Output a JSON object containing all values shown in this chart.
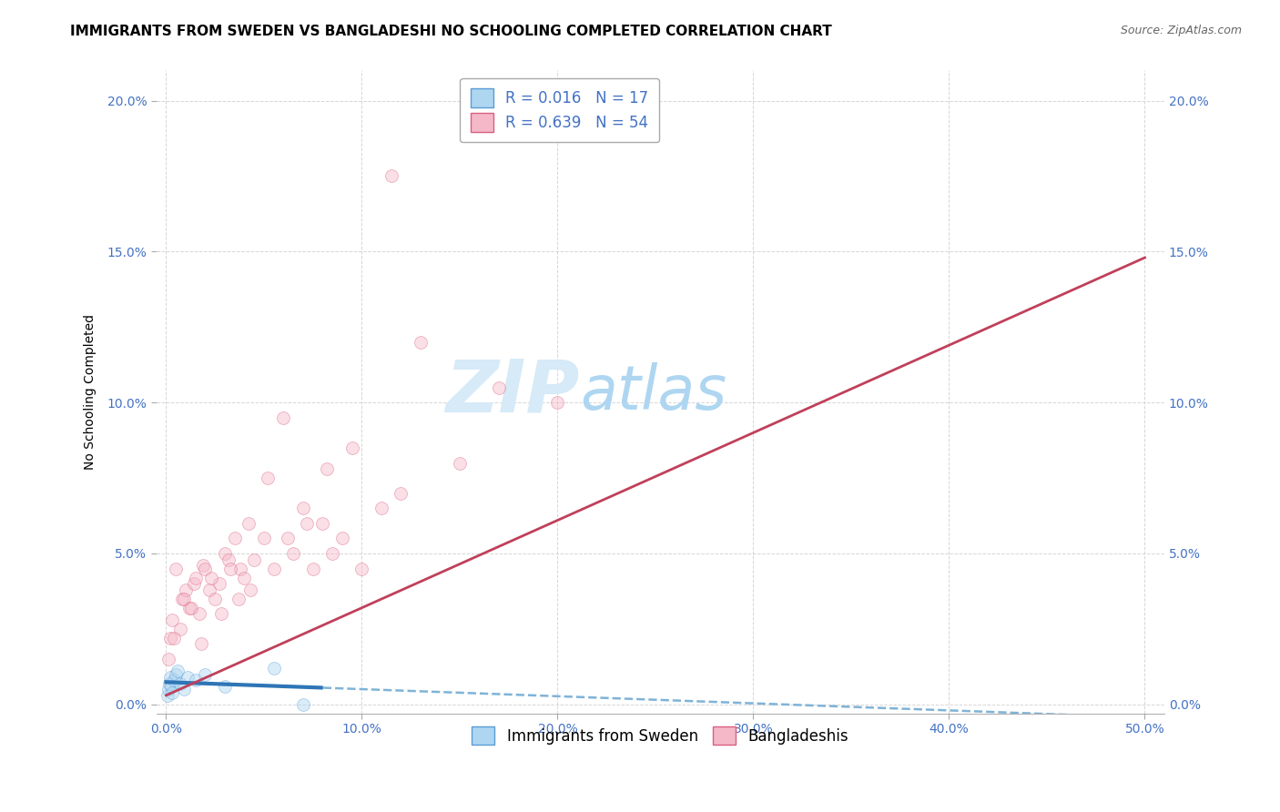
{
  "title": "IMMIGRANTS FROM SWEDEN VS BANGLADESHI NO SCHOOLING COMPLETED CORRELATION CHART",
  "source": "Source: ZipAtlas.com",
  "xlabel_vals": [
    0.0,
    10.0,
    20.0,
    30.0,
    40.0,
    50.0
  ],
  "ylabel_vals": [
    0.0,
    5.0,
    10.0,
    15.0,
    20.0
  ],
  "ylabel_label": "No Schooling Completed",
  "xlim": [
    -0.5,
    51
  ],
  "ylim": [
    -0.3,
    21
  ],
  "series": [
    {
      "label": "Immigrants from Sweden",
      "R": 0.016,
      "N": 17,
      "color": "#aed6f1",
      "edge_color": "#5b9bd5",
      "trendline_color": "#2e75b6",
      "trendline_color_dashed": "#7fb3d8",
      "trendline_style": "solid_then_dashed",
      "x": [
        0.05,
        0.1,
        0.15,
        0.2,
        0.25,
        0.3,
        0.4,
        0.5,
        0.6,
        0.7,
        0.9,
        1.1,
        1.5,
        2.0,
        3.0,
        5.5,
        7.0
      ],
      "y": [
        0.3,
        0.5,
        0.7,
        0.9,
        0.6,
        0.4,
        0.8,
        1.0,
        1.1,
        0.7,
        0.5,
        0.9,
        0.8,
        1.0,
        0.6,
        1.2,
        0.0
      ]
    },
    {
      "label": "Bangladeshis",
      "R": 0.639,
      "N": 54,
      "color": "#f5b8c8",
      "edge_color": "#d95f80",
      "trendline_color": "#c0405a",
      "trendline_style": "solid",
      "x": [
        0.1,
        0.2,
        0.3,
        0.5,
        0.7,
        0.8,
        1.0,
        1.2,
        1.4,
        1.5,
        1.7,
        1.9,
        2.0,
        2.2,
        2.5,
        2.7,
        3.0,
        3.2,
        3.5,
        3.8,
        4.0,
        4.2,
        4.5,
        5.0,
        5.5,
        6.0,
        6.5,
        7.0,
        7.5,
        8.0,
        8.5,
        9.0,
        10.0,
        11.0,
        12.0,
        13.0,
        15.0,
        17.0,
        20.0,
        0.4,
        0.9,
        1.3,
        1.8,
        2.3,
        2.8,
        3.3,
        3.7,
        4.3,
        5.2,
        6.2,
        7.2,
        8.2,
        9.5,
        11.5
      ],
      "y": [
        1.5,
        2.2,
        2.8,
        4.5,
        2.5,
        3.5,
        3.8,
        3.2,
        4.0,
        4.2,
        3.0,
        4.6,
        4.5,
        3.8,
        3.5,
        4.0,
        5.0,
        4.8,
        5.5,
        4.5,
        4.2,
        6.0,
        4.8,
        5.5,
        4.5,
        9.5,
        5.0,
        6.5,
        4.5,
        6.0,
        5.0,
        5.5,
        4.5,
        6.5,
        7.0,
        12.0,
        8.0,
        10.5,
        10.0,
        2.2,
        3.5,
        3.2,
        2.0,
        4.2,
        3.0,
        4.5,
        3.5,
        3.8,
        7.5,
        5.5,
        6.0,
        7.8,
        8.5,
        17.5
      ]
    }
  ],
  "legend_box_color": "#ffffff",
  "legend_border_color": "#aaaaaa",
  "watermark_zip_color": "#d6eaf8",
  "watermark_atlas_color": "#aed6f1",
  "background_color": "#ffffff",
  "grid_color": "#cccccc",
  "title_fontsize": 11,
  "axis_label_fontsize": 10,
  "tick_fontsize": 10,
  "source_fontsize": 9,
  "legend_fontsize": 12,
  "marker_size": 100,
  "marker_alpha": 0.45,
  "blue_solid_end_x": 8.0,
  "trendline_intercept_bangladesh": 0.3,
  "trendline_slope_bangladesh": 0.29
}
